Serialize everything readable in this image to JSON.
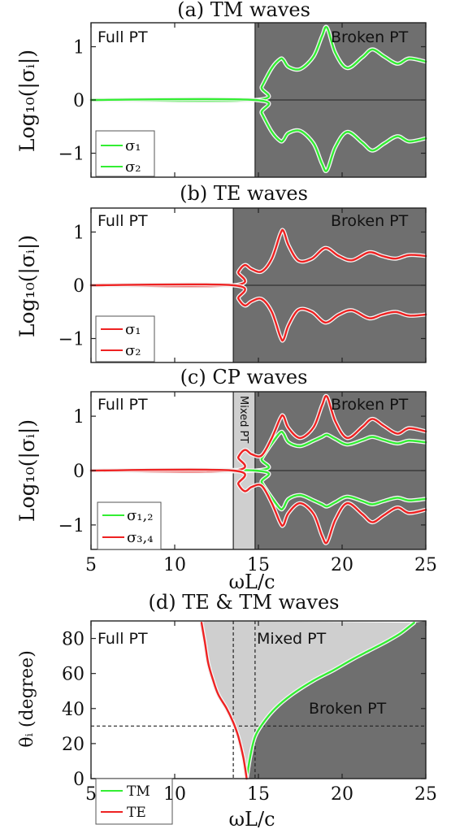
{
  "colors": {
    "broken": "#6f6f6f",
    "mixed": "#cfcfcf",
    "full": "#ffffff",
    "green": "#33ee33",
    "red": "#ee2222",
    "halo": "#f4f4f4"
  },
  "xaxis": {
    "label": "ωL/c",
    "range": [
      5,
      25
    ],
    "ticks": [
      "5",
      "10",
      "15",
      "20",
      "25"
    ],
    "tick_values": [
      5,
      10,
      15,
      20,
      25
    ]
  },
  "chart_data": [
    {
      "type": "line",
      "title": "(a) TM waves",
      "ylabel": "Log₁₀(|σᵢ|)",
      "xlim": [
        5,
        25
      ],
      "ylim": [
        -1.45,
        1.45
      ],
      "yticks": [
        "1",
        "0",
        "−1"
      ],
      "ytick_values": [
        1,
        0,
        -1
      ],
      "regions": [
        {
          "label": "Full PT",
          "from": 5,
          "to": 14.8,
          "fill": "full"
        },
        {
          "label": "Broken PT",
          "from": 14.8,
          "to": 25,
          "fill": "broken"
        }
      ],
      "boundaries": [
        14.8
      ],
      "legend": {
        "position": "bottom-left",
        "entries": [
          "σ₁",
          "σ₂"
        ]
      },
      "series": [
        {
          "name": "σ₁",
          "color": "green",
          "x": [
            5,
            14.8,
            15.2,
            15.8,
            16.3,
            16.5,
            16.8,
            17.5,
            18.3,
            18.8,
            19.1,
            19.6,
            20.3,
            21.2,
            21.8,
            22.5,
            23.3,
            24.0,
            25.0
          ],
          "y": [
            0,
            0,
            0.25,
            0.6,
            0.77,
            0.75,
            0.62,
            0.58,
            0.82,
            1.2,
            1.36,
            0.88,
            0.6,
            0.8,
            0.95,
            0.82,
            0.68,
            0.78,
            0.72
          ]
        },
        {
          "name": "σ₂",
          "color": "green",
          "x": [
            5,
            14.8,
            15.2,
            15.8,
            16.3,
            16.5,
            16.8,
            17.5,
            18.3,
            18.8,
            19.1,
            19.6,
            20.3,
            21.2,
            21.8,
            22.5,
            23.3,
            24.0,
            25.0
          ],
          "y": [
            0,
            0,
            -0.25,
            -0.6,
            -0.77,
            -0.75,
            -0.62,
            -0.58,
            -0.82,
            -1.2,
            -1.32,
            -0.88,
            -0.6,
            -0.8,
            -0.95,
            -0.82,
            -0.68,
            -0.78,
            -0.72
          ]
        }
      ]
    },
    {
      "type": "line",
      "title": "(b) TE waves",
      "ylabel": "Log₁₀(|σᵢ|)",
      "xlim": [
        5,
        25
      ],
      "ylim": [
        -1.45,
        1.45
      ],
      "yticks": [
        "1",
        "0",
        "−1"
      ],
      "ytick_values": [
        1,
        0,
        -1
      ],
      "regions": [
        {
          "label": "Full PT",
          "from": 5,
          "to": 13.5,
          "fill": "full"
        },
        {
          "label": "Broken PT",
          "from": 13.5,
          "to": 25,
          "fill": "broken"
        }
      ],
      "boundaries": [
        13.5
      ],
      "legend": {
        "position": "bottom-left",
        "entries": [
          "σ₁",
          "σ₂"
        ]
      },
      "series": [
        {
          "name": "σ₁",
          "color": "red",
          "x": [
            5,
            13.5,
            13.8,
            14.2,
            14.6,
            15.2,
            15.8,
            16.3,
            16.5,
            16.8,
            17.4,
            18.2,
            19.0,
            19.8,
            20.6,
            21.6,
            22.4,
            23.2,
            24.0,
            25.0
          ],
          "y": [
            0,
            0,
            0.25,
            0.38,
            0.3,
            0.26,
            0.5,
            0.96,
            1.02,
            0.75,
            0.46,
            0.5,
            0.7,
            0.55,
            0.47,
            0.62,
            0.55,
            0.5,
            0.57,
            0.55
          ]
        },
        {
          "name": "σ₂",
          "color": "red",
          "x": [
            5,
            13.5,
            13.8,
            14.2,
            14.6,
            15.2,
            15.8,
            16.3,
            16.5,
            16.8,
            17.4,
            18.2,
            19.0,
            19.8,
            20.6,
            21.6,
            22.4,
            23.2,
            24.0,
            25.0
          ],
          "y": [
            0,
            0,
            -0.25,
            -0.38,
            -0.3,
            -0.26,
            -0.5,
            -0.96,
            -1.02,
            -0.75,
            -0.46,
            -0.5,
            -0.7,
            -0.55,
            -0.47,
            -0.62,
            -0.55,
            -0.5,
            -0.57,
            -0.55
          ]
        }
      ]
    },
    {
      "type": "line",
      "title": "(c) CP waves",
      "ylabel": "Log₁₀(|σᵢ|)",
      "xlim": [
        5,
        25
      ],
      "ylim": [
        -1.45,
        1.45
      ],
      "yticks": [
        "1",
        "0",
        "−1"
      ],
      "ytick_values": [
        1,
        0,
        -1
      ],
      "regions": [
        {
          "label": "Full PT",
          "from": 5,
          "to": 13.5,
          "fill": "full"
        },
        {
          "label": "Mixed PT",
          "from": 13.5,
          "to": 14.8,
          "fill": "mixed"
        },
        {
          "label": "Broken PT",
          "from": 14.8,
          "to": 25,
          "fill": "broken"
        }
      ],
      "boundaries": [
        13.5,
        14.8
      ],
      "legend": {
        "position": "bottom-left",
        "entries": [
          "σ₁,₂",
          "σ₃,₄"
        ]
      },
      "series": [
        {
          "name": "σ₁,₂ (upper)",
          "color": "green",
          "x": [
            5,
            14.8,
            15.2,
            15.8,
            16.3,
            16.5,
            16.8,
            17.5,
            18.3,
            18.8,
            19.1,
            19.6,
            20.3,
            21.2,
            21.8,
            22.5,
            23.3,
            24.0,
            25.0
          ],
          "y": [
            0,
            0,
            0.22,
            0.5,
            0.7,
            0.68,
            0.52,
            0.45,
            0.55,
            0.62,
            0.66,
            0.58,
            0.48,
            0.56,
            0.62,
            0.56,
            0.5,
            0.55,
            0.52
          ]
        },
        {
          "name": "σ₁,₂ (lower)",
          "color": "green",
          "x": [
            5,
            14.8,
            15.2,
            15.8,
            16.3,
            16.5,
            16.8,
            17.5,
            18.3,
            18.8,
            19.1,
            19.6,
            20.3,
            21.2,
            21.8,
            22.5,
            23.3,
            24.0,
            25.0
          ],
          "y": [
            0,
            0,
            -0.22,
            -0.5,
            -0.7,
            -0.68,
            -0.52,
            -0.45,
            -0.55,
            -0.62,
            -0.66,
            -0.58,
            -0.48,
            -0.56,
            -0.62,
            -0.56,
            -0.5,
            -0.55,
            -0.52
          ]
        },
        {
          "name": "σ₃,₄ (upper)",
          "color": "red",
          "x": [
            5,
            13.5,
            13.8,
            14.2,
            14.6,
            15.2,
            15.8,
            16.3,
            16.5,
            16.8,
            17.5,
            18.3,
            18.8,
            19.1,
            19.6,
            20.3,
            21.2,
            21.8,
            22.5,
            23.3,
            24.0,
            25.0
          ],
          "y": [
            0,
            0,
            0.25,
            0.38,
            0.3,
            0.28,
            0.6,
            0.96,
            1.0,
            0.78,
            0.6,
            0.8,
            1.2,
            1.36,
            0.9,
            0.6,
            0.8,
            0.95,
            0.82,
            0.68,
            0.78,
            0.72
          ]
        },
        {
          "name": "σ₃,₄ (lower)",
          "color": "red",
          "x": [
            5,
            13.5,
            13.8,
            14.2,
            14.6,
            15.2,
            15.8,
            16.3,
            16.5,
            16.8,
            17.5,
            18.3,
            18.8,
            19.1,
            19.6,
            20.3,
            21.2,
            21.8,
            22.5,
            23.3,
            24.0,
            25.0
          ],
          "y": [
            0,
            0,
            -0.25,
            -0.38,
            -0.3,
            -0.28,
            -0.6,
            -0.96,
            -1.0,
            -0.78,
            -0.6,
            -0.8,
            -1.2,
            -1.32,
            -0.9,
            -0.6,
            -0.8,
            -0.95,
            -0.82,
            -0.68,
            -0.78,
            -0.72
          ]
        }
      ]
    },
    {
      "type": "line",
      "title": "(d) TE & TM waves",
      "ylabel": "θᵢ (degree)",
      "xlabel": "ωL/c",
      "xlim": [
        5,
        25
      ],
      "ylim": [
        0,
        90
      ],
      "yticks": [
        "80",
        "60",
        "40",
        "20",
        "0"
      ],
      "ytick_values": [
        80,
        60,
        40,
        20,
        0
      ],
      "regions": [
        {
          "label": "Full PT"
        },
        {
          "label": "Mixed PT"
        },
        {
          "label": "Broken PT"
        }
      ],
      "dashed_lines": {
        "vertical": [
          13.5,
          14.8
        ],
        "horizontal": [
          30
        ]
      },
      "legend": {
        "position": "bottom-left",
        "entries": [
          "TM",
          "TE"
        ]
      },
      "series": [
        {
          "name": "TM",
          "color": "green",
          "x": [
            14.3,
            14.5,
            14.8,
            15.3,
            16.0,
            17.0,
            18.3,
            19.5,
            20.6,
            21.6,
            22.6,
            23.5,
            24.3
          ],
          "y": [
            0,
            12,
            24,
            32,
            40,
            48,
            56,
            62,
            68,
            73,
            78,
            83,
            89
          ]
        },
        {
          "name": "TE",
          "color": "red",
          "x": [
            11.6,
            11.8,
            12.0,
            12.3,
            12.6,
            13.1,
            13.5,
            13.8,
            14.1,
            14.3
          ],
          "y": [
            89,
            78,
            66,
            56,
            48,
            40,
            32,
            24,
            12,
            0
          ]
        }
      ]
    }
  ]
}
